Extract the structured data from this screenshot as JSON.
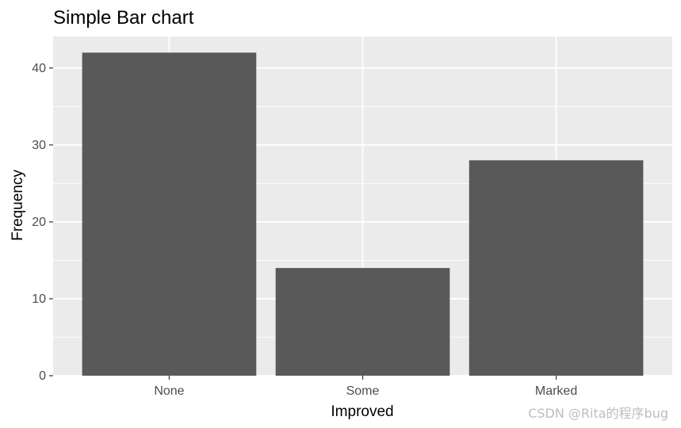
{
  "chart_data": {
    "type": "bar",
    "title": "Simple Bar chart",
    "xlabel": "Improved",
    "ylabel": "Frequency",
    "categories": [
      "None",
      "Some",
      "Marked"
    ],
    "values": [
      42,
      14,
      28
    ],
    "ylim": [
      0,
      44.1
    ],
    "yticks": [
      0,
      10,
      20,
      30,
      40
    ],
    "grid": true,
    "colors": {
      "bar": "#595959",
      "panel": "#ebebeb",
      "grid": "#ffffff",
      "tick": "#333333"
    }
  },
  "watermark": "CSDN @Rita的程序bug"
}
